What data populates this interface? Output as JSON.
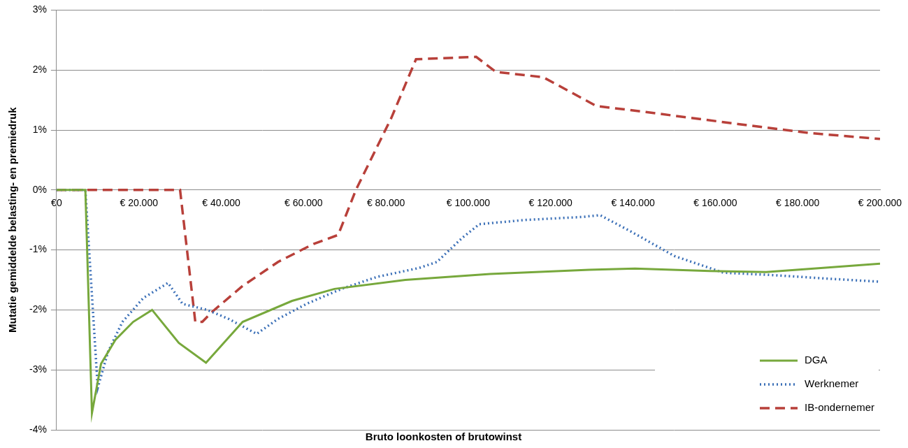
{
  "chart_data": {
    "type": "line",
    "x_label": "Bruto loonkosten of brutowinst",
    "y_label": "Mutatie gemiddelde belasting- en premiedruk",
    "xlim": [
      0,
      200000
    ],
    "xticks": [
      {
        "value": 0,
        "label": "€0"
      },
      {
        "value": 20000,
        "label": "€ 20.000"
      },
      {
        "value": 40000,
        "label": "€ 40.000"
      },
      {
        "value": 60000,
        "label": "€ 60.000"
      },
      {
        "value": 80000,
        "label": "€ 80.000"
      },
      {
        "value": 100000,
        "label": "€ 100.000"
      },
      {
        "value": 120000,
        "label": "€ 120.000"
      },
      {
        "value": 140000,
        "label": "€ 140.000"
      },
      {
        "value": 160000,
        "label": "€ 160.000"
      },
      {
        "value": 180000,
        "label": "€ 180.000"
      },
      {
        "value": 200000,
        "label": "€ 200.000"
      }
    ],
    "ylim": [
      -4,
      3
    ],
    "yticks": [
      {
        "value": -4,
        "label": "-4%"
      },
      {
        "value": -3,
        "label": "-3%"
      },
      {
        "value": -2,
        "label": "-2%"
      },
      {
        "value": -1,
        "label": "-1%"
      },
      {
        "value": 0,
        "label": "0%"
      },
      {
        "value": 1,
        "label": "1%"
      },
      {
        "value": 2,
        "label": "2%"
      },
      {
        "value": 3,
        "label": "3%"
      }
    ],
    "grid": true,
    "legend": "lower right",
    "series": [
      {
        "name": "DGA",
        "color": "#77a83c",
        "line_style": "solid",
        "x": [
          0,
          7000,
          8600,
          10800,
          14300,
          18600,
          23200,
          29700,
          36300,
          45200,
          57200,
          67500,
          84700,
          105300,
          129400,
          140500,
          158600,
          172300,
          186200,
          200000
        ],
        "values": [
          0,
          0,
          -3.72,
          -2.9,
          -2.5,
          -2.2,
          -2.0,
          -2.55,
          -2.88,
          -2.2,
          -1.85,
          -1.65,
          -1.5,
          -1.4,
          -1.33,
          -1.31,
          -1.35,
          -1.37,
          -1.3,
          -1.23
        ]
      },
      {
        "name": "Werknemer",
        "color": "#3a6fb7",
        "line_style": "dotted",
        "x": [
          0,
          7000,
          10000,
          12500,
          16000,
          21100,
          27100,
          30600,
          36600,
          41800,
          48600,
          53800,
          60700,
          69200,
          77800,
          88100,
          92400,
          98500,
          102700,
          113900,
          127700,
          132000,
          139700,
          150000,
          162000,
          174000,
          187600,
          200000
        ],
        "values": [
          0,
          0,
          -3.3,
          -2.7,
          -2.2,
          -1.8,
          -1.55,
          -1.9,
          -2.0,
          -2.15,
          -2.4,
          -2.15,
          -1.9,
          -1.65,
          -1.45,
          -1.3,
          -1.2,
          -0.8,
          -0.57,
          -0.5,
          -0.45,
          -0.42,
          -0.7,
          -1.1,
          -1.38,
          -1.42,
          -1.48,
          -1.53
        ]
      },
      {
        "name": "IB-ondernemer",
        "color": "#b8403a",
        "line_style": "dashed",
        "x": [
          0,
          30000,
          33700,
          35400,
          37500,
          45200,
          53800,
          62400,
          68400,
          72700,
          81300,
          87300,
          101900,
          106700,
          118200,
          131100,
          143100,
          165500,
          182700,
          200000
        ],
        "values": [
          0,
          0,
          -2.2,
          -2.2,
          -2.05,
          -1.6,
          -1.2,
          -0.9,
          -0.75,
          0,
          1.2,
          2.18,
          2.22,
          1.97,
          1.88,
          1.4,
          1.3,
          1.1,
          0.95,
          0.85
        ]
      }
    ]
  }
}
